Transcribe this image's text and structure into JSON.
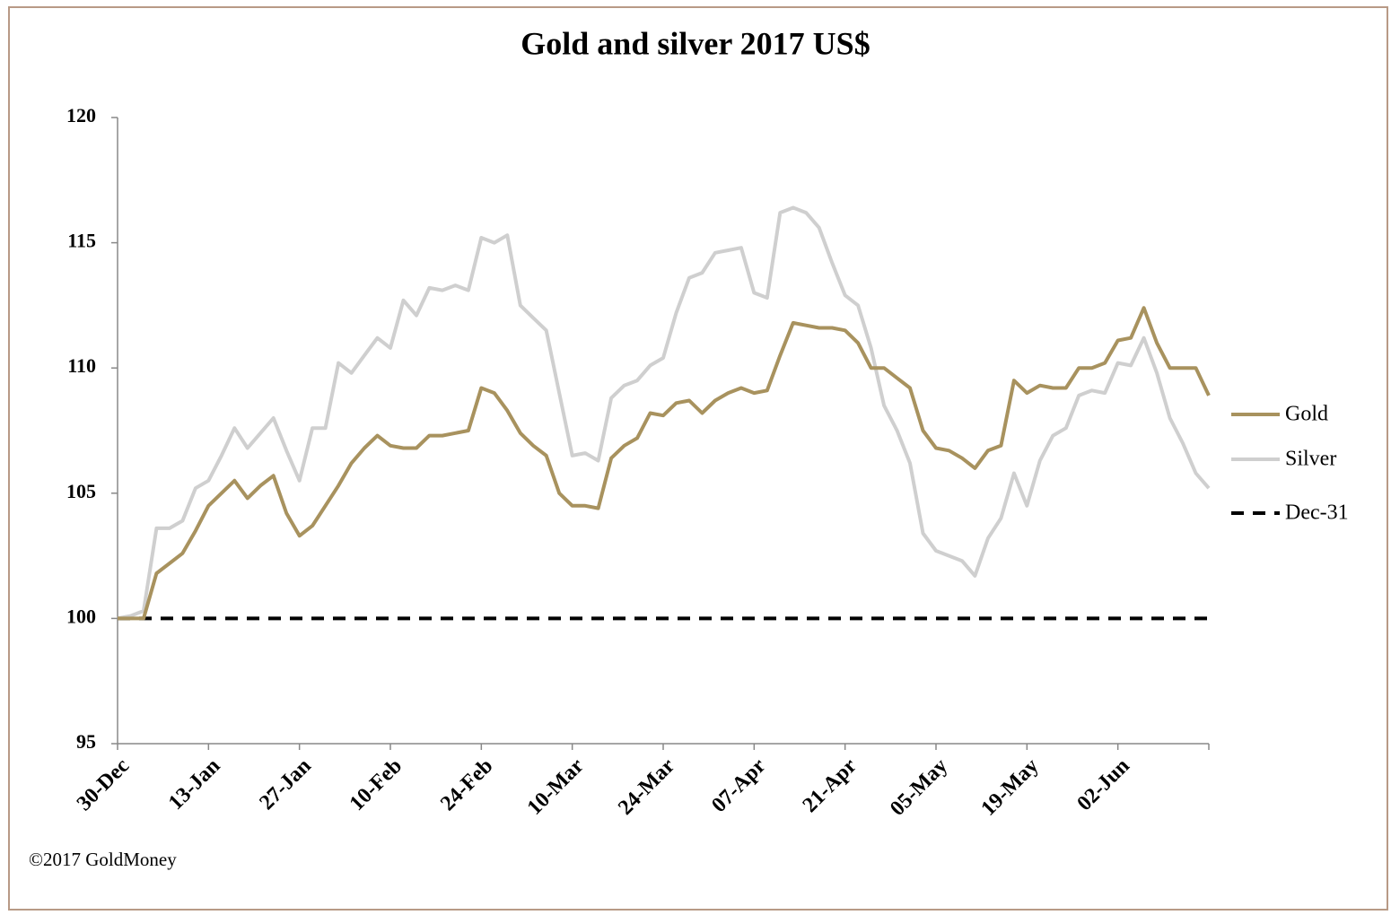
{
  "chart_data": {
    "type": "line",
    "title": "Gold and silver 2017  US$",
    "footnote": "©2017 GoldMoney",
    "categories": [
      "30-Dec",
      null,
      null,
      null,
      null,
      null,
      null,
      "13-Jan",
      null,
      null,
      null,
      null,
      null,
      null,
      "27-Jan",
      null,
      null,
      null,
      null,
      null,
      null,
      "10-Feb",
      null,
      null,
      null,
      null,
      null,
      null,
      "24-Feb",
      null,
      null,
      null,
      null,
      null,
      null,
      "10-Mar",
      null,
      null,
      null,
      null,
      null,
      null,
      "24-Mar",
      null,
      null,
      null,
      null,
      null,
      null,
      "07-Apr",
      null,
      null,
      null,
      null,
      null,
      null,
      "21-Apr",
      null,
      null,
      null,
      null,
      null,
      null,
      "05-May",
      null,
      null,
      null,
      null,
      null,
      null,
      "19-May",
      null,
      null,
      null,
      null,
      null,
      null,
      "02-Jun",
      null,
      null,
      null,
      null,
      null,
      null,
      null
    ],
    "series": [
      {
        "name": "Gold",
        "color": "#a8925e",
        "line_style": "solid",
        "values": [
          100,
          100,
          100,
          101.8,
          102.2,
          102.6,
          103.5,
          104.5,
          105.0,
          105.5,
          104.8,
          105.3,
          105.7,
          104.2,
          103.3,
          103.7,
          104.5,
          105.3,
          106.2,
          106.8,
          107.3,
          106.9,
          106.8,
          106.8,
          107.3,
          107.3,
          107.4,
          107.5,
          109.2,
          109.0,
          108.3,
          107.4,
          106.9,
          106.5,
          105.0,
          104.5,
          104.5,
          104.4,
          106.4,
          106.9,
          107.2,
          108.2,
          108.1,
          108.6,
          108.7,
          108.2,
          108.7,
          109.0,
          109.2,
          109.0,
          109.1,
          110.5,
          111.8,
          111.7,
          111.6,
          111.6,
          111.5,
          111.0,
          110.0,
          110.0,
          109.6,
          109.2,
          107.5,
          106.8,
          106.7,
          106.4,
          106.0,
          106.7,
          106.9,
          109.5,
          109.0,
          109.3,
          109.2,
          109.2,
          110.0,
          110.0,
          110.2,
          111.1,
          111.2,
          112.4,
          111.0,
          110.0,
          110.0,
          110.0,
          108.9
        ]
      },
      {
        "name": "Silver",
        "color": "#cfcfcf",
        "line_style": "solid",
        "values": [
          100,
          100.1,
          100.3,
          103.6,
          103.6,
          103.9,
          105.2,
          105.5,
          106.5,
          107.6,
          106.8,
          107.4,
          108.0,
          106.7,
          105.5,
          107.6,
          107.6,
          110.2,
          109.8,
          110.5,
          111.2,
          110.8,
          112.7,
          112.1,
          113.2,
          113.1,
          113.3,
          113.1,
          115.2,
          115.0,
          115.3,
          112.5,
          112.0,
          111.5,
          109.0,
          106.5,
          106.6,
          106.3,
          108.8,
          109.3,
          109.5,
          110.1,
          110.4,
          112.2,
          113.6,
          113.8,
          114.6,
          114.7,
          114.8,
          113.0,
          112.8,
          116.2,
          116.4,
          116.2,
          115.6,
          114.2,
          112.9,
          112.5,
          110.8,
          108.5,
          107.5,
          106.2,
          103.4,
          102.7,
          102.5,
          102.3,
          101.7,
          103.2,
          104.0,
          105.8,
          104.5,
          106.3,
          107.3,
          107.6,
          108.9,
          109.1,
          109.0,
          110.2,
          110.1,
          111.2,
          109.8,
          108.0,
          107.0,
          105.8,
          105.2
        ]
      },
      {
        "name": "Dec-31",
        "color": "#000000",
        "line_style": "dashed",
        "values": [
          100,
          100,
          100,
          100,
          100,
          100,
          100,
          100,
          100,
          100,
          100,
          100,
          100,
          100,
          100,
          100,
          100,
          100,
          100,
          100,
          100,
          100,
          100,
          100,
          100,
          100,
          100,
          100,
          100,
          100,
          100,
          100,
          100,
          100,
          100,
          100,
          100,
          100,
          100,
          100,
          100,
          100,
          100,
          100,
          100,
          100,
          100,
          100,
          100,
          100,
          100,
          100,
          100,
          100,
          100,
          100,
          100,
          100,
          100,
          100,
          100,
          100,
          100,
          100,
          100,
          100,
          100,
          100,
          100,
          100,
          100,
          100,
          100,
          100,
          100,
          100,
          100,
          100,
          100,
          100,
          100,
          100,
          100,
          100,
          100
        ]
      }
    ],
    "ylim": [
      95,
      120
    ],
    "yticks": [
      95,
      100,
      105,
      110,
      115,
      120
    ],
    "grid": false,
    "legend": "right"
  }
}
